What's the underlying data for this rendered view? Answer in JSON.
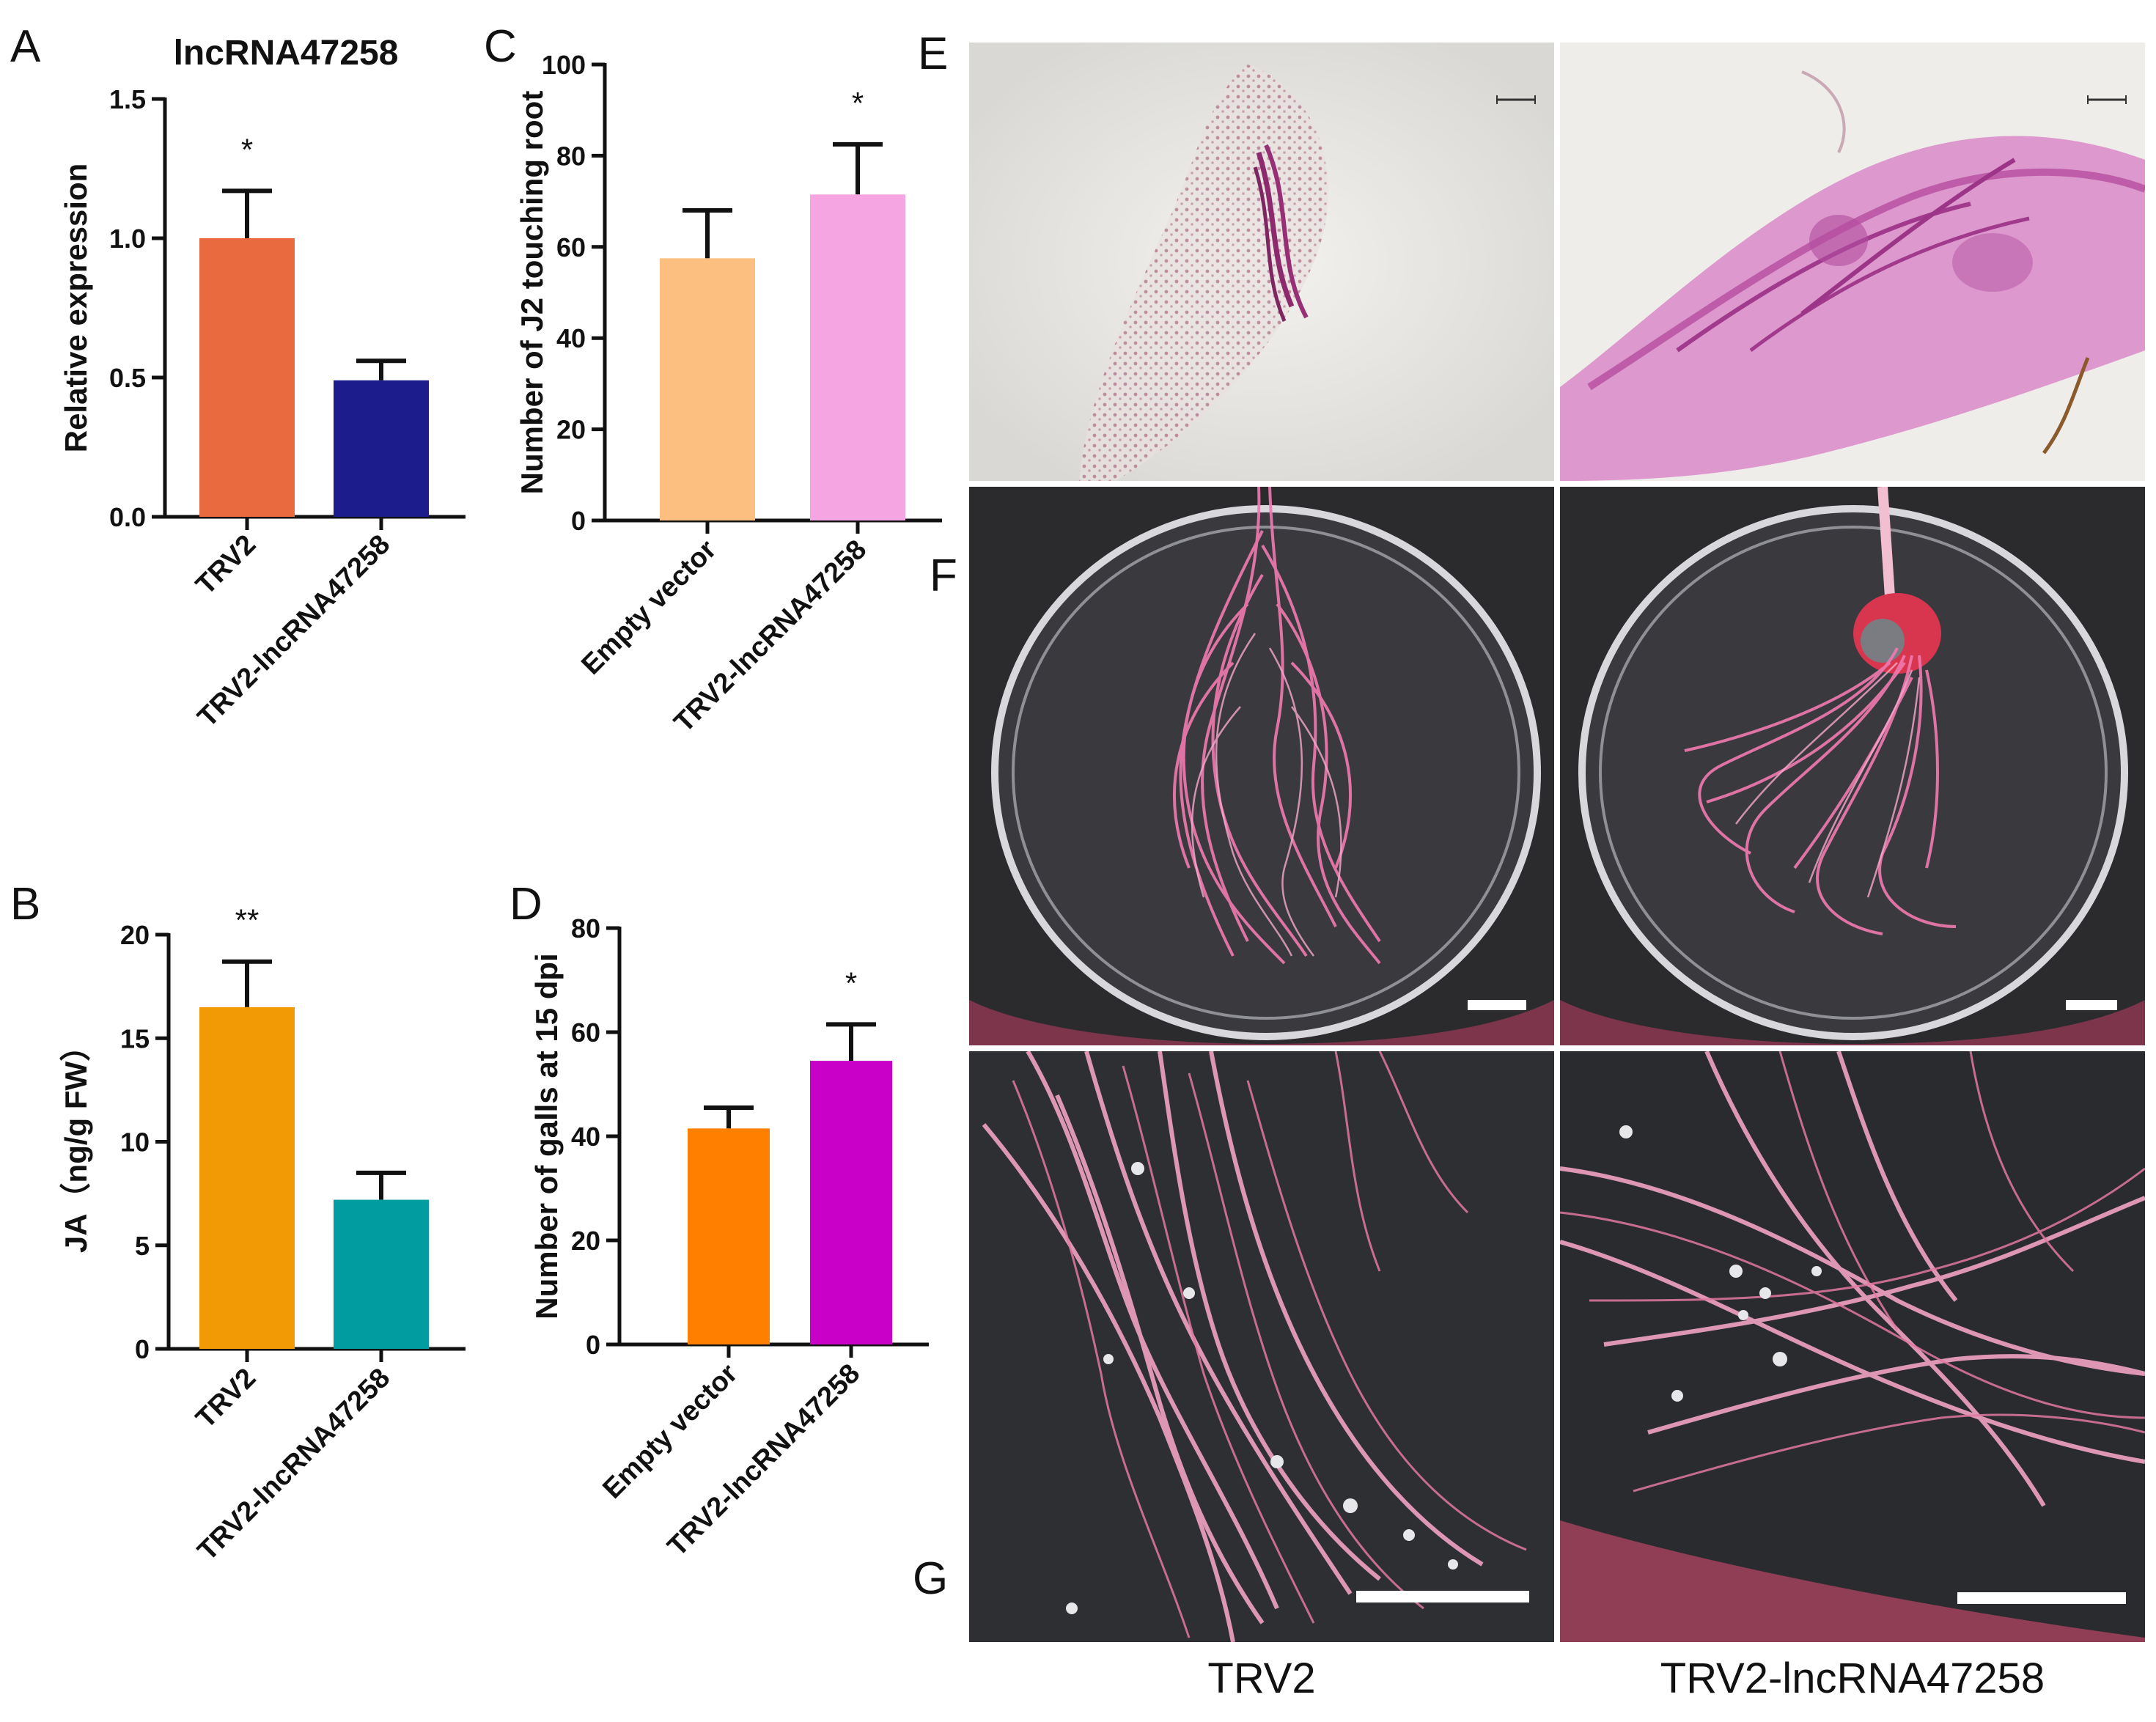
{
  "panels": {
    "A": "A",
    "B": "B",
    "C": "C",
    "D": "D",
    "E": "E",
    "F": "F",
    "G": "G"
  },
  "bottom_labels": [
    "TRV2",
    "TRV2-lncRNA47258"
  ],
  "colors": {
    "A_bars": [
      "#E96A3F",
      "#1C1C8C"
    ],
    "B_bars": [
      "#F29A06",
      "#009CA0"
    ],
    "C_bars": [
      "#FDBF80",
      "#F5A6E2"
    ],
    "D_bars": [
      "#FF7F00",
      "#C800C8"
    ]
  },
  "chart_data": [
    {
      "id": "A",
      "type": "bar",
      "title": "lncRNA47258",
      "ylabel": "Relative expression",
      "categories": [
        "TRV2",
        "TRV2-lncRNA47258"
      ],
      "values": [
        1.0,
        0.49
      ],
      "errors": [
        0.17,
        0.07
      ],
      "significance": [
        "*",
        ""
      ],
      "ylim": [
        0,
        1.5
      ],
      "yticks": [
        "0.0",
        "0.5",
        "1.0",
        "1.5"
      ]
    },
    {
      "id": "B",
      "type": "bar",
      "title": "",
      "ylabel": "JA（ng/g FW）",
      "categories": [
        "TRV2",
        "TRV2-lncRNA47258"
      ],
      "values": [
        16.5,
        7.2
      ],
      "errors": [
        2.2,
        1.3
      ],
      "significance": [
        "**",
        ""
      ],
      "ylim": [
        0,
        20
      ],
      "yticks": [
        "0",
        "5",
        "10",
        "15",
        "20"
      ]
    },
    {
      "id": "C",
      "type": "bar",
      "title": "",
      "ylabel": "Number of J2 touching root",
      "categories": [
        "Empty vector",
        "TRV2-lncRNA47258"
      ],
      "values": [
        57.5,
        71.5
      ],
      "errors": [
        10.5,
        11.0
      ],
      "significance": [
        "",
        "*"
      ],
      "ylim": [
        0,
        100
      ],
      "yticks": [
        "0",
        "20",
        "40",
        "60",
        "80",
        "100"
      ]
    },
    {
      "id": "D",
      "type": "bar",
      "title": "",
      "ylabel": "Number of galls at 15 dpi",
      "categories": [
        "Empty vector",
        "TRV2-lncRNA47258"
      ],
      "values": [
        41.5,
        54.5
      ],
      "errors": [
        4.0,
        7.0
      ],
      "significance": [
        "",
        "*"
      ],
      "ylim": [
        0,
        80
      ],
      "yticks": [
        "0",
        "20",
        "40",
        "60",
        "80"
      ]
    }
  ]
}
